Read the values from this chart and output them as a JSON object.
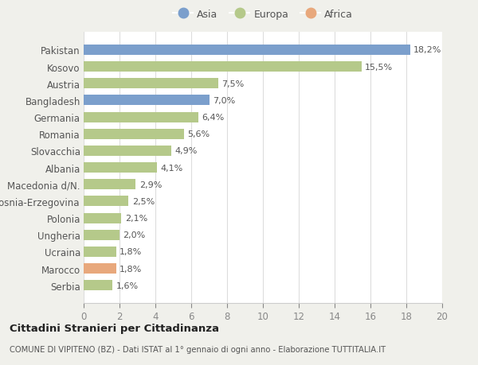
{
  "categories": [
    "Serbia",
    "Marocco",
    "Ucraina",
    "Ungheria",
    "Polonia",
    "Bosnia-Erzegovina",
    "Macedonia d/N.",
    "Albania",
    "Slovacchia",
    "Romania",
    "Germania",
    "Bangladesh",
    "Austria",
    "Kosovo",
    "Pakistan"
  ],
  "values": [
    1.6,
    1.8,
    1.8,
    2.0,
    2.1,
    2.5,
    2.9,
    4.1,
    4.9,
    5.6,
    6.4,
    7.0,
    7.5,
    15.5,
    18.2
  ],
  "labels": [
    "1,6%",
    "1,8%",
    "1,8%",
    "2,0%",
    "2,1%",
    "2,5%",
    "2,9%",
    "4,1%",
    "4,9%",
    "5,6%",
    "6,4%",
    "7,0%",
    "7,5%",
    "15,5%",
    "18,2%"
  ],
  "colors": [
    "#b5c98a",
    "#e8a87c",
    "#b5c98a",
    "#b5c98a",
    "#b5c98a",
    "#b5c98a",
    "#b5c98a",
    "#b5c98a",
    "#b5c98a",
    "#b5c98a",
    "#b5c98a",
    "#7b9fcc",
    "#b5c98a",
    "#b5c98a",
    "#7b9fcc"
  ],
  "legend_labels": [
    "Asia",
    "Europa",
    "Africa"
  ],
  "legend_colors": [
    "#7b9fcc",
    "#b5c98a",
    "#e8a87c"
  ],
  "title": "Cittadini Stranieri per Cittadinanza",
  "subtitle": "COMUNE DI VIPITENO (BZ) - Dati ISTAT al 1° gennaio di ogni anno - Elaborazione TUTTITALIA.IT",
  "xlim": [
    0,
    20
  ],
  "xticks": [
    0,
    2,
    4,
    6,
    8,
    10,
    12,
    14,
    16,
    18,
    20
  ],
  "bg_color": "#f0f0eb",
  "plot_bg_color": "#ffffff",
  "bar_height": 0.62,
  "label_fontsize": 8.0,
  "ytick_fontsize": 8.5,
  "xtick_fontsize": 8.5
}
